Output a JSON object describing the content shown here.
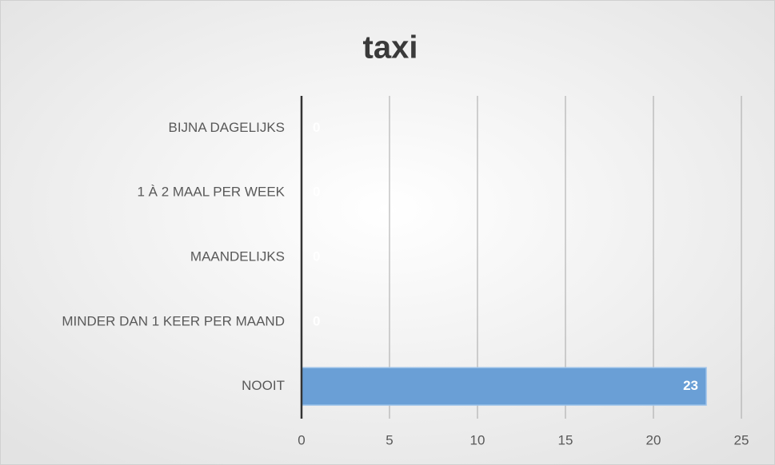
{
  "chart_data": {
    "type": "bar",
    "orientation": "horizontal",
    "title": "taxi",
    "categories": [
      "BIJNA DAGELIJKS",
      "1 À 2 MAAL PER WEEK",
      "MAANDELIJKS",
      "MINDER DAN 1 KEER PER MAAND",
      "NOOIT"
    ],
    "values": [
      0,
      0,
      0,
      0,
      23
    ],
    "color": "#6a9fd6",
    "xlim": [
      0,
      25
    ],
    "xticks": [
      0,
      5,
      10,
      15,
      20,
      25
    ],
    "grid": true,
    "data_labels": true
  }
}
